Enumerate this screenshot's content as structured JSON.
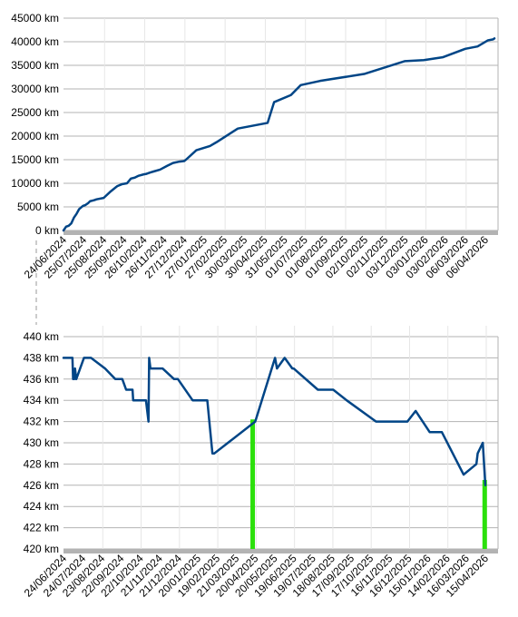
{
  "colors": {
    "series": "#004586",
    "highlight": "#2be00b",
    "grid": "#b3b3b3",
    "axis_band": "#b3b3b3"
  },
  "chart_data": [
    {
      "type": "line",
      "title": "",
      "xlabel": "",
      "ylabel": "",
      "ylim": [
        0,
        45000
      ],
      "y_ticks": [
        "0 km",
        "5000 km",
        "10000 km",
        "15000 km",
        "20000 km",
        "25000 km",
        "30000 km",
        "35000 km",
        "40000 km",
        "45000 km"
      ],
      "x_tick_labels": [
        "24/06/2024",
        "25/07/2024",
        "25/08/2024",
        "25/09/2024",
        "26/10/2024",
        "26/11/2024",
        "27/12/2024",
        "27/01/2025",
        "27/02/2025",
        "30/03/2025",
        "30/04/2025",
        "31/05/2025",
        "01/07/2025",
        "01/08/2025",
        "01/09/2025",
        "02/10/2025",
        "02/11/2025",
        "03/12/2025",
        "03/01/2026",
        "03/02/2026",
        "06/03/2026",
        "06/04/2026"
      ],
      "grid": true,
      "series": [
        {
          "x": [
            "2024-06-24",
            "2024-06-28",
            "2024-07-02",
            "2024-07-06",
            "2024-07-10",
            "2024-07-14",
            "2024-07-18",
            "2024-07-24",
            "2024-07-28",
            "2024-08-01",
            "2024-08-04",
            "2024-08-10",
            "2024-08-14",
            "2024-08-25",
            "2024-09-05",
            "2024-09-15",
            "2024-09-22",
            "2024-09-30",
            "2024-10-06",
            "2024-10-12",
            "2024-10-18",
            "2024-10-26",
            "2024-10-30",
            "2024-11-05",
            "2024-11-10",
            "2024-11-20",
            "2024-12-01",
            "2024-12-10",
            "2024-12-20",
            "2024-12-27",
            "2024-12-30",
            "2025-01-15",
            "2025-02-05",
            "2025-02-15",
            "2025-03-20",
            "2025-05-05",
            "2025-05-15",
            "2025-06-10",
            "2025-06-25",
            "2025-07-25",
            "2025-10-02",
            "2025-12-03",
            "2026-01-01",
            "2026-01-30",
            "2026-03-06",
            "2026-03-25",
            "2026-04-10",
            "2026-04-18",
            "2026-04-20"
          ],
          "y": [
            0,
            800,
            1000,
            1500,
            2700,
            3500,
            4500,
            5200,
            5400,
            5800,
            6200,
            6400,
            6600,
            6900,
            8300,
            9400,
            9800,
            10000,
            11000,
            11200,
            11600,
            11900,
            12000,
            12300,
            12500,
            12900,
            13700,
            14300,
            14600,
            14700,
            15000,
            17000,
            17900,
            18700,
            21600,
            22800,
            27200,
            28700,
            30800,
            31700,
            33200,
            35900,
            36100,
            36700,
            38500,
            39000,
            40300,
            40500,
            40700
          ]
        }
      ]
    },
    {
      "type": "line",
      "title": "",
      "xlabel": "",
      "ylabel": "",
      "ylim": [
        420,
        440
      ],
      "y_ticks": [
        "420 km",
        "422 km",
        "424 km",
        "426 km",
        "428 km",
        "430 km",
        "432 km",
        "434 km",
        "436 km",
        "438 km",
        "440 km"
      ],
      "x_tick_labels": [
        "24/06/2024",
        "24/07/2024",
        "23/08/2024",
        "22/09/2024",
        "22/10/2024",
        "21/11/2024",
        "21/12/2024",
        "20/01/2025",
        "19/02/2025",
        "21/03/2025",
        "20/04/2025",
        "20/05/2025",
        "19/06/2025",
        "19/07/2025",
        "18/08/2025",
        "17/09/2025",
        "17/10/2025",
        "16/11/2025",
        "16/12/2025",
        "15/01/2026",
        "14/02/2026",
        "16/03/2026",
        "15/04/2026"
      ],
      "grid": true,
      "series": [
        {
          "x": [
            "2024-06-24",
            "2024-07-08",
            "2024-07-09",
            "2024-07-11",
            "2024-07-12",
            "2024-07-14",
            "2024-07-26",
            "2024-07-27",
            "2024-08-06",
            "2024-08-28",
            "2024-09-13",
            "2024-09-24",
            "2024-09-30",
            "2024-10-10",
            "2024-10-11",
            "2024-10-24",
            "2024-10-31",
            "2024-11-04",
            "2024-11-05",
            "2024-11-07",
            "2024-11-26",
            "2024-12-14",
            "2024-12-20",
            "2025-01-12",
            "2025-02-04",
            "2025-02-12",
            "2025-02-15",
            "2025-04-20",
            "2025-05-21",
            "2025-05-24",
            "2025-06-05",
            "2025-06-17",
            "2025-06-19",
            "2025-07-27",
            "2025-08-20",
            "2025-09-10",
            "2025-10-26",
            "2025-12-04",
            "2025-12-10",
            "2025-12-14",
            "2025-12-27",
            "2026-01-18",
            "2026-02-06",
            "2026-03-12",
            "2026-04-01",
            "2026-04-03",
            "2026-04-11",
            "2026-04-15"
          ],
          "y": [
            438,
            438,
            436,
            436,
            437,
            436,
            438,
            438,
            438,
            437,
            436,
            436,
            435,
            435,
            434,
            434,
            434,
            432,
            438,
            437,
            437,
            436,
            436,
            434,
            434,
            429,
            429,
            432,
            438,
            437,
            438,
            437,
            437,
            435,
            435,
            434,
            432,
            432,
            432,
            432,
            433,
            431,
            431,
            427,
            428,
            429,
            430,
            426
          ]
        }
      ],
      "highlight_bars": [
        {
          "x": "2025-04-16",
          "y_from": 420,
          "y_to": 432.2
        },
        {
          "x": "2026-04-14",
          "y_from": 420,
          "y_to": 426.5
        }
      ]
    }
  ]
}
